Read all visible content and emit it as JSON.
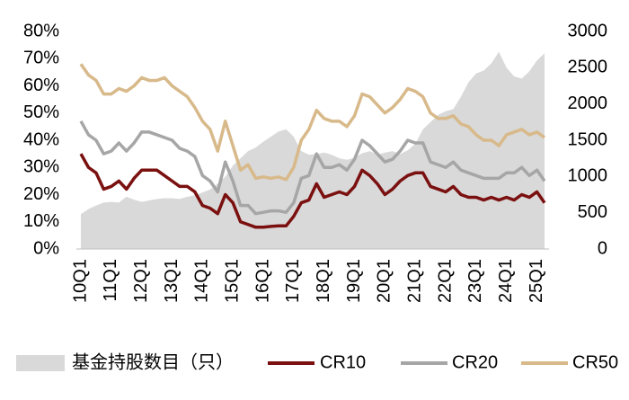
{
  "chart_data": {
    "type": "line",
    "categories": [
      "10Q1",
      null,
      null,
      null,
      "11Q1",
      null,
      null,
      null,
      "12Q1",
      null,
      null,
      null,
      "13Q1",
      null,
      null,
      null,
      "14Q1",
      null,
      null,
      null,
      "15Q1",
      null,
      null,
      null,
      "16Q1",
      null,
      null,
      null,
      "17Q1",
      null,
      null,
      null,
      "18Q1",
      null,
      null,
      null,
      "19Q1",
      null,
      null,
      null,
      "20Q1",
      null,
      null,
      null,
      "21Q1",
      null,
      null,
      null,
      "22Q1",
      null,
      null,
      null,
      "23Q1",
      null,
      null,
      null,
      "24Q1",
      null,
      null,
      null,
      "25Q1",
      null
    ],
    "series": [
      {
        "name": "基金持股数目（只）",
        "type": "area",
        "axis": "y2",
        "color": "#d9d9d9",
        "values": [
          480,
          550,
          600,
          640,
          650,
          640,
          720,
          680,
          650,
          670,
          690,
          700,
          700,
          690,
          720,
          740,
          780,
          820,
          900,
          1000,
          1150,
          1250,
          1350,
          1400,
          1480,
          1550,
          1620,
          1650,
          1550,
          1350,
          1300,
          1310,
          1330,
          1300,
          1250,
          1230,
          1260,
          1320,
          1350,
          1300,
          1330,
          1350,
          1310,
          1360,
          1450,
          1650,
          1750,
          1850,
          1900,
          1930,
          2100,
          2300,
          2420,
          2460,
          2560,
          2720,
          2500,
          2380,
          2350,
          2450,
          2600,
          2700
        ]
      },
      {
        "name": "CR10",
        "color": "#7b1010",
        "values": [
          35,
          30,
          28,
          22,
          23,
          25,
          22,
          26,
          29,
          29,
          29,
          27,
          25,
          23,
          23,
          21,
          16,
          15,
          13,
          20,
          17,
          10,
          9,
          8,
          8,
          8.3,
          8.5,
          8.5,
          12,
          17,
          18,
          24,
          19,
          20,
          21,
          20,
          23,
          29,
          27,
          24,
          20,
          22,
          25,
          27,
          28,
          28,
          23,
          22,
          21,
          23,
          20,
          19,
          19,
          18,
          19,
          18,
          19,
          18,
          20,
          19,
          21,
          17
        ]
      },
      {
        "name": "CR20",
        "color": "#a6a6a6",
        "values": [
          47,
          42,
          40,
          35,
          36,
          39,
          36,
          39,
          43,
          43,
          42,
          41,
          40,
          37,
          36,
          34,
          27,
          25,
          21,
          32,
          25,
          16,
          16,
          13,
          13.5,
          14,
          14,
          13.5,
          17,
          26,
          27,
          35,
          30,
          30,
          31,
          29,
          33,
          40,
          38,
          35,
          32,
          33,
          36,
          40,
          39,
          39,
          32,
          31,
          30,
          32,
          29,
          28,
          27,
          26,
          26,
          26,
          28,
          28,
          30,
          27,
          29,
          25
        ]
      },
      {
        "name": "CR50",
        "color": "#d8b98a",
        "values": [
          68,
          64,
          62,
          57,
          57,
          59,
          58,
          60,
          63,
          62,
          62,
          63,
          60,
          58,
          56,
          52,
          47,
          44,
          36,
          47,
          38,
          29,
          31,
          26,
          26.5,
          26,
          26.5,
          25.5,
          30,
          40,
          44,
          51,
          48,
          47,
          47,
          45,
          49,
          57,
          56,
          53,
          50,
          52,
          55,
          59,
          58,
          56,
          50,
          48,
          48,
          49,
          46,
          45,
          42,
          40,
          40,
          38,
          42,
          43,
          44,
          42,
          43,
          41
        ]
      }
    ],
    "ylim": [
      0,
      80
    ],
    "yticks": [
      {
        "value": 0,
        "label": "0%"
      },
      {
        "value": 10,
        "label": "10%"
      },
      {
        "value": 20,
        "label": "20%"
      },
      {
        "value": 30,
        "label": "30%"
      },
      {
        "value": 40,
        "label": "40%"
      },
      {
        "value": 50,
        "label": "50%"
      },
      {
        "value": 60,
        "label": "60%"
      },
      {
        "value": 70,
        "label": "70%"
      },
      {
        "value": 80,
        "label": "80%"
      }
    ],
    "y2lim": [
      0,
      3000
    ],
    "y2ticks": [
      0,
      500,
      1000,
      1500,
      2000,
      2500,
      3000
    ]
  }
}
